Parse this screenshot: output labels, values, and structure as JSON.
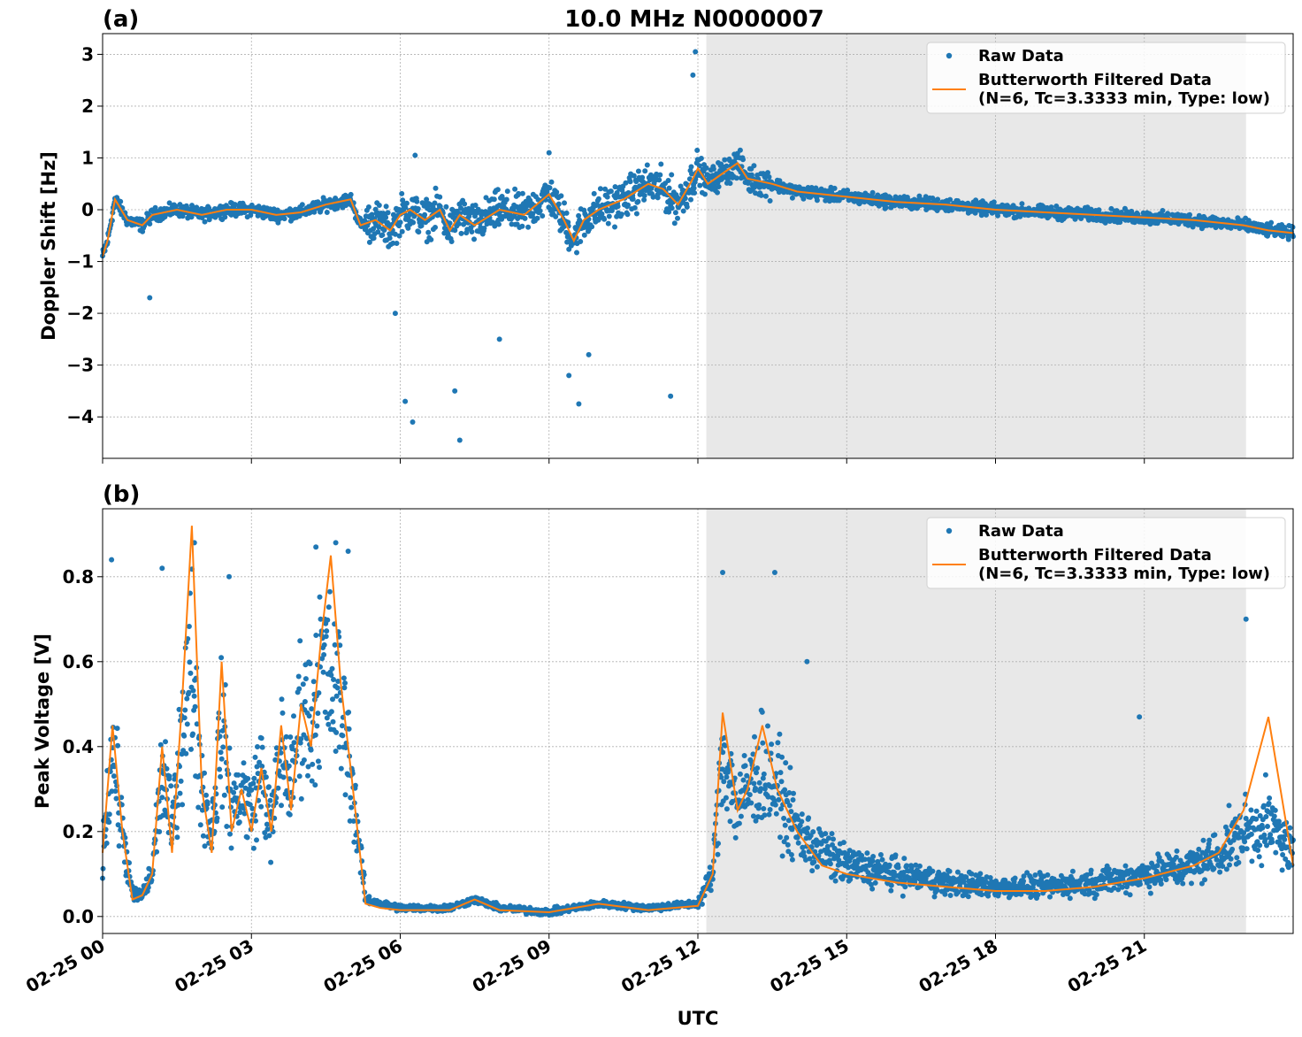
{
  "figure": {
    "title": "10.0 MHz N0000007",
    "xlabel": "UTC"
  },
  "colors": {
    "raw": "#1f77b4",
    "filtered": "#ff7f0e",
    "shade": "#e8e8e8",
    "grid": "#b0b0b0"
  },
  "legend": {
    "raw": "Raw Data",
    "filtered_line1": "Butterworth Filtered Data",
    "filtered_line2": "(N=6, Tc=3.3333 min, Type: low)"
  },
  "x_ticks": [
    "02-25 00",
    "02-25 03",
    "02-25 06",
    "02-25 09",
    "02-25 12",
    "02-25 15",
    "02-25 18",
    "02-25 21"
  ],
  "chart_data": [
    {
      "type": "scatter",
      "panel": "(a)",
      "ylabel": "Doppler Shift [Hz]",
      "xlim_hours": [
        0,
        24
      ],
      "ylim": [
        -4.8,
        3.4
      ],
      "y_ticks": [
        3,
        2,
        1,
        0,
        -1,
        -2,
        -3,
        -4
      ],
      "shaded_region_hours": [
        12.17,
        23.05
      ],
      "grid": true,
      "legend_position": "upper right",
      "series": [
        {
          "name": "Raw Data",
          "style": "points",
          "x_hours": [
            0,
            0.1,
            0.25,
            0.5,
            0.8,
            1.0,
            1.5,
            2,
            2.5,
            3,
            3.5,
            4,
            4.5,
            5.0,
            5.2,
            5.5,
            5.8,
            6.0,
            6.2,
            6.5,
            6.8,
            7.0,
            7.2,
            7.5,
            8.0,
            8.5,
            9.0,
            9.3,
            9.5,
            9.7,
            10.0,
            10.5,
            11.0,
            11.3,
            11.6,
            11.9,
            12.0,
            12.2,
            12.5,
            12.8,
            13.0,
            13.5,
            14,
            15,
            16,
            17,
            18,
            19,
            20,
            21,
            22,
            23,
            23.5,
            24
          ],
          "y_hz": [
            -0.9,
            -0.6,
            0.2,
            -0.2,
            -0.3,
            -0.1,
            0.0,
            -0.1,
            0.0,
            0.0,
            -0.1,
            -0.05,
            0.1,
            0.2,
            -0.3,
            -0.2,
            -0.4,
            -0.1,
            0.0,
            -0.2,
            0.0,
            -0.4,
            -0.1,
            -0.3,
            0.0,
            -0.1,
            0.3,
            -0.2,
            -0.6,
            -0.2,
            0.0,
            0.2,
            0.5,
            0.4,
            0.1,
            0.6,
            0.8,
            0.5,
            0.7,
            0.9,
            0.6,
            0.5,
            0.35,
            0.25,
            0.15,
            0.1,
            0.0,
            -0.05,
            -0.1,
            -0.15,
            -0.2,
            -0.3,
            -0.4,
            -0.45
          ]
        },
        {
          "name": "Butterworth Filtered Data\n(N=6, Tc=3.3333 min, Type: low)",
          "style": "line",
          "x_hours": [
            0,
            0.1,
            0.25,
            0.5,
            0.8,
            1.0,
            1.5,
            2,
            2.5,
            3,
            3.5,
            4,
            4.5,
            5.0,
            5.2,
            5.5,
            5.8,
            6.0,
            6.2,
            6.5,
            6.8,
            7.0,
            7.2,
            7.5,
            8.0,
            8.5,
            9.0,
            9.3,
            9.5,
            9.7,
            10.0,
            10.5,
            11.0,
            11.3,
            11.6,
            11.9,
            12.0,
            12.2,
            12.5,
            12.8,
            13.0,
            13.5,
            14,
            15,
            16,
            17,
            18,
            19,
            20,
            21,
            22,
            23,
            23.5,
            24
          ],
          "y_hz": [
            -0.9,
            -0.6,
            0.2,
            -0.2,
            -0.3,
            -0.1,
            0.0,
            -0.1,
            0.0,
            0.0,
            -0.1,
            -0.05,
            0.1,
            0.2,
            -0.3,
            -0.2,
            -0.4,
            -0.1,
            0.0,
            -0.2,
            0.0,
            -0.4,
            -0.1,
            -0.3,
            0.0,
            -0.1,
            0.3,
            -0.2,
            -0.6,
            -0.2,
            0.0,
            0.2,
            0.5,
            0.4,
            0.1,
            0.6,
            0.8,
            0.5,
            0.7,
            0.9,
            0.6,
            0.5,
            0.35,
            0.25,
            0.15,
            0.1,
            0.0,
            -0.05,
            -0.1,
            -0.15,
            -0.2,
            -0.3,
            -0.4,
            -0.45
          ]
        }
      ],
      "outliers": [
        {
          "x_hours": 6.1,
          "y": -3.7
        },
        {
          "x_hours": 6.25,
          "y": -4.1
        },
        {
          "x_hours": 7.2,
          "y": -4.45
        },
        {
          "x_hours": 7.1,
          "y": -3.5
        },
        {
          "x_hours": 9.6,
          "y": -3.75
        },
        {
          "x_hours": 9.4,
          "y": -3.2
        },
        {
          "x_hours": 11.45,
          "y": -3.6
        },
        {
          "x_hours": 11.95,
          "y": 3.05
        },
        {
          "x_hours": 11.9,
          "y": 2.6
        },
        {
          "x_hours": 6.3,
          "y": 1.05
        },
        {
          "x_hours": 9.0,
          "y": 1.1
        },
        {
          "x_hours": 0.95,
          "y": -1.7
        },
        {
          "x_hours": 8.0,
          "y": -2.5
        },
        {
          "x_hours": 5.9,
          "y": -2.0
        },
        {
          "x_hours": 9.8,
          "y": -2.8
        }
      ]
    },
    {
      "type": "scatter",
      "panel": "(b)",
      "ylabel": "Peak Voltage [V]",
      "xlim_hours": [
        0,
        24
      ],
      "ylim": [
        -0.04,
        0.96
      ],
      "y_ticks": [
        0.8,
        0.6,
        0.4,
        0.2,
        0.0
      ],
      "y_tick_labels": [
        "0.8",
        "0.6",
        "0.4",
        "0.2",
        "0.0"
      ],
      "shaded_region_hours": [
        12.17,
        23.05
      ],
      "grid": true,
      "legend_position": "upper right",
      "series": [
        {
          "name": "Raw Data",
          "style": "points",
          "x_hours": [
            0,
            0.2,
            0.4,
            0.6,
            0.8,
            1.0,
            1.2,
            1.4,
            1.6,
            1.8,
            2.0,
            2.2,
            2.4,
            2.6,
            2.8,
            3.0,
            3.2,
            3.4,
            3.6,
            3.8,
            4.0,
            4.2,
            4.4,
            4.6,
            4.8,
            5.0,
            5.3,
            5.6,
            6.0,
            7.0,
            7.5,
            8.0,
            9.0,
            10.0,
            11.0,
            12.0,
            12.3,
            12.5,
            12.8,
            13.0,
            13.3,
            13.6,
            14.0,
            14.5,
            15,
            16,
            17,
            18,
            19,
            20,
            21,
            22,
            22.5,
            23,
            23.5,
            24
          ],
          "y_v": [
            0.15,
            0.4,
            0.2,
            0.05,
            0.05,
            0.1,
            0.35,
            0.2,
            0.45,
            0.6,
            0.3,
            0.2,
            0.45,
            0.25,
            0.3,
            0.25,
            0.35,
            0.2,
            0.4,
            0.3,
            0.5,
            0.45,
            0.6,
            0.55,
            0.5,
            0.35,
            0.04,
            0.03,
            0.02,
            0.02,
            0.04,
            0.02,
            0.01,
            0.03,
            0.02,
            0.03,
            0.1,
            0.4,
            0.25,
            0.3,
            0.35,
            0.3,
            0.2,
            0.15,
            0.12,
            0.1,
            0.08,
            0.07,
            0.07,
            0.08,
            0.1,
            0.12,
            0.15,
            0.2,
            0.22,
            0.15
          ]
        },
        {
          "name": "Butterworth Filtered Data\n(N=6, Tc=3.3333 min, Type: low)",
          "style": "line",
          "x_hours": [
            0,
            0.2,
            0.4,
            0.6,
            0.8,
            1.0,
            1.2,
            1.4,
            1.6,
            1.8,
            2.0,
            2.2,
            2.4,
            2.6,
            2.8,
            3.0,
            3.2,
            3.4,
            3.6,
            3.8,
            4.0,
            4.2,
            4.4,
            4.6,
            4.8,
            5.0,
            5.3,
            5.6,
            6.0,
            7.0,
            7.5,
            8.0,
            9.0,
            10.0,
            11.0,
            12.0,
            12.3,
            12.5,
            12.8,
            13.0,
            13.3,
            13.6,
            14.0,
            14.5,
            15,
            16,
            17,
            18,
            19,
            20,
            21,
            22,
            22.5,
            23,
            23.5,
            24
          ],
          "y_v": [
            0.15,
            0.45,
            0.2,
            0.04,
            0.05,
            0.1,
            0.4,
            0.15,
            0.5,
            0.92,
            0.3,
            0.15,
            0.6,
            0.2,
            0.3,
            0.2,
            0.35,
            0.2,
            0.45,
            0.25,
            0.5,
            0.4,
            0.65,
            0.85,
            0.55,
            0.35,
            0.03,
            0.02,
            0.015,
            0.015,
            0.04,
            0.015,
            0.01,
            0.03,
            0.015,
            0.025,
            0.1,
            0.48,
            0.25,
            0.3,
            0.45,
            0.3,
            0.2,
            0.12,
            0.1,
            0.08,
            0.07,
            0.06,
            0.06,
            0.07,
            0.09,
            0.12,
            0.15,
            0.25,
            0.47,
            0.12
          ]
        }
      ],
      "outliers": [
        {
          "x_hours": 0.18,
          "y": 0.84
        },
        {
          "x_hours": 1.2,
          "y": 0.82
        },
        {
          "x_hours": 1.85,
          "y": 0.88
        },
        {
          "x_hours": 2.55,
          "y": 0.8
        },
        {
          "x_hours": 4.3,
          "y": 0.87
        },
        {
          "x_hours": 4.7,
          "y": 0.88
        },
        {
          "x_hours": 4.95,
          "y": 0.86
        },
        {
          "x_hours": 12.5,
          "y": 0.81
        },
        {
          "x_hours": 13.55,
          "y": 0.81
        },
        {
          "x_hours": 14.2,
          "y": 0.6
        },
        {
          "x_hours": 20.9,
          "y": 0.47
        },
        {
          "x_hours": 23.05,
          "y": 0.7
        }
      ]
    }
  ]
}
